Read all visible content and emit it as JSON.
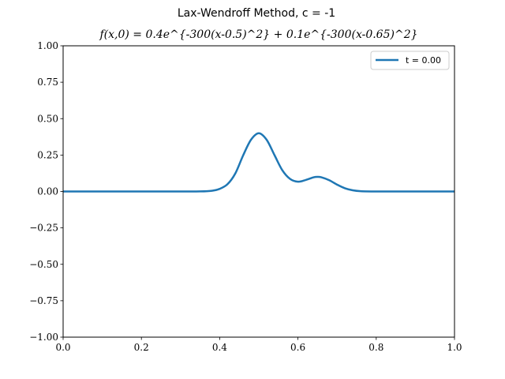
{
  "title": "Lax-Wendroff Method, c = -1",
  "subtitle": "f(x,0) = 0.4e^{-300(x-0.5)^2} + 0.1e^{-300(x-0.65)^2}",
  "chart_data": {
    "type": "line",
    "title": "Lax-Wendroff Method, c = -1",
    "subtitle": "f(x,0) = 0.4e^{-300(x-0.5)^2} + 0.1e^{-300(x-0.65)^2}",
    "xlabel": "",
    "ylabel": "",
    "xlim": [
      0,
      1
    ],
    "ylim": [
      -1,
      1
    ],
    "x_ticks": [
      "0.0",
      "0.2",
      "0.4",
      "0.6",
      "0.8",
      "1.0"
    ],
    "y_ticks": [
      "−1.00",
      "−0.75",
      "−0.50",
      "−0.25",
      "0.00",
      "0.25",
      "0.50",
      "0.75",
      "1.00"
    ],
    "grid": false,
    "legend_position": "top-right",
    "series": [
      {
        "name": "t = 0.00",
        "color": "#1f77b4",
        "x": [
          0.0,
          0.1,
          0.2,
          0.3,
          0.35,
          0.38,
          0.4,
          0.42,
          0.44,
          0.46,
          0.48,
          0.5,
          0.52,
          0.54,
          0.56,
          0.58,
          0.6,
          0.62,
          0.64,
          0.65,
          0.66,
          0.68,
          0.7,
          0.72,
          0.74,
          0.76,
          0.8,
          0.9,
          1.0
        ],
        "y": [
          0.0,
          0.0,
          0.0,
          0.0,
          0.0004,
          0.005,
          0.018,
          0.05,
          0.124,
          0.248,
          0.355,
          0.4,
          0.355,
          0.25,
          0.146,
          0.086,
          0.067,
          0.079,
          0.097,
          0.1,
          0.097,
          0.077,
          0.047,
          0.022,
          0.008,
          0.002,
          0.0,
          0.0,
          0.0
        ]
      }
    ]
  }
}
